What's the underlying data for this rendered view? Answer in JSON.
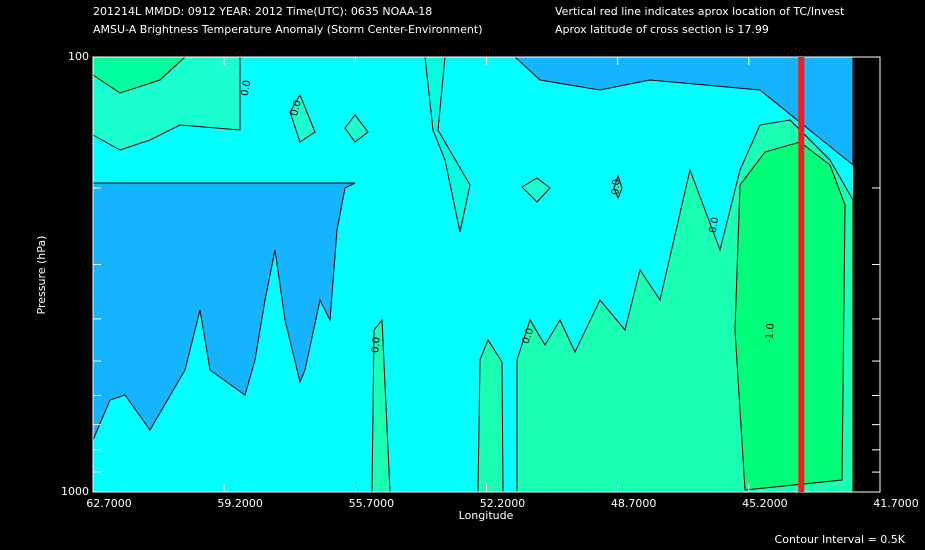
{
  "chart_data": {
    "type": "contour",
    "title_lines": [
      "201214L  MMDD: 0912 YEAR: 2012 Time(UTC): 0635 NOAA-18",
      "AMSU-A Brightness Temperature Anomaly (Storm Center-Environment)"
    ],
    "notes": [
      "Vertical red line indicates aprox location of TC/Invest",
      "Aprox latitude of cross section is 17.99"
    ],
    "x_label": "Longitude",
    "y_label": "Pressure (hPa)",
    "footer": "Contour Interval = 0.5K",
    "xlim": [
      62.7,
      41.7
    ],
    "xticks": [
      {
        "value": 62.7,
        "label": "62.7000"
      },
      {
        "value": 59.2,
        "label": "59.2000"
      },
      {
        "value": 55.7,
        "label": "55.7000"
      },
      {
        "value": 52.2,
        "label": "52.2000"
      },
      {
        "value": 48.7,
        "label": "48.7000"
      },
      {
        "value": 45.2,
        "label": "45.2000"
      },
      {
        "value": 41.7,
        "label": "41.7000"
      }
    ],
    "ylim": [
      100,
      1000
    ],
    "yticks": [
      100,
      1000
    ],
    "y_minor_ticks": [
      200,
      300,
      400,
      500,
      600,
      700,
      800,
      900
    ],
    "log_y": true,
    "tc_longitude": 43.8,
    "tc_color": "#ff1a1a",
    "contour_labels": [
      "0.0",
      "0.0",
      "0.0",
      "0.0",
      "0.0",
      "0.0",
      "-1.0"
    ]
  }
}
